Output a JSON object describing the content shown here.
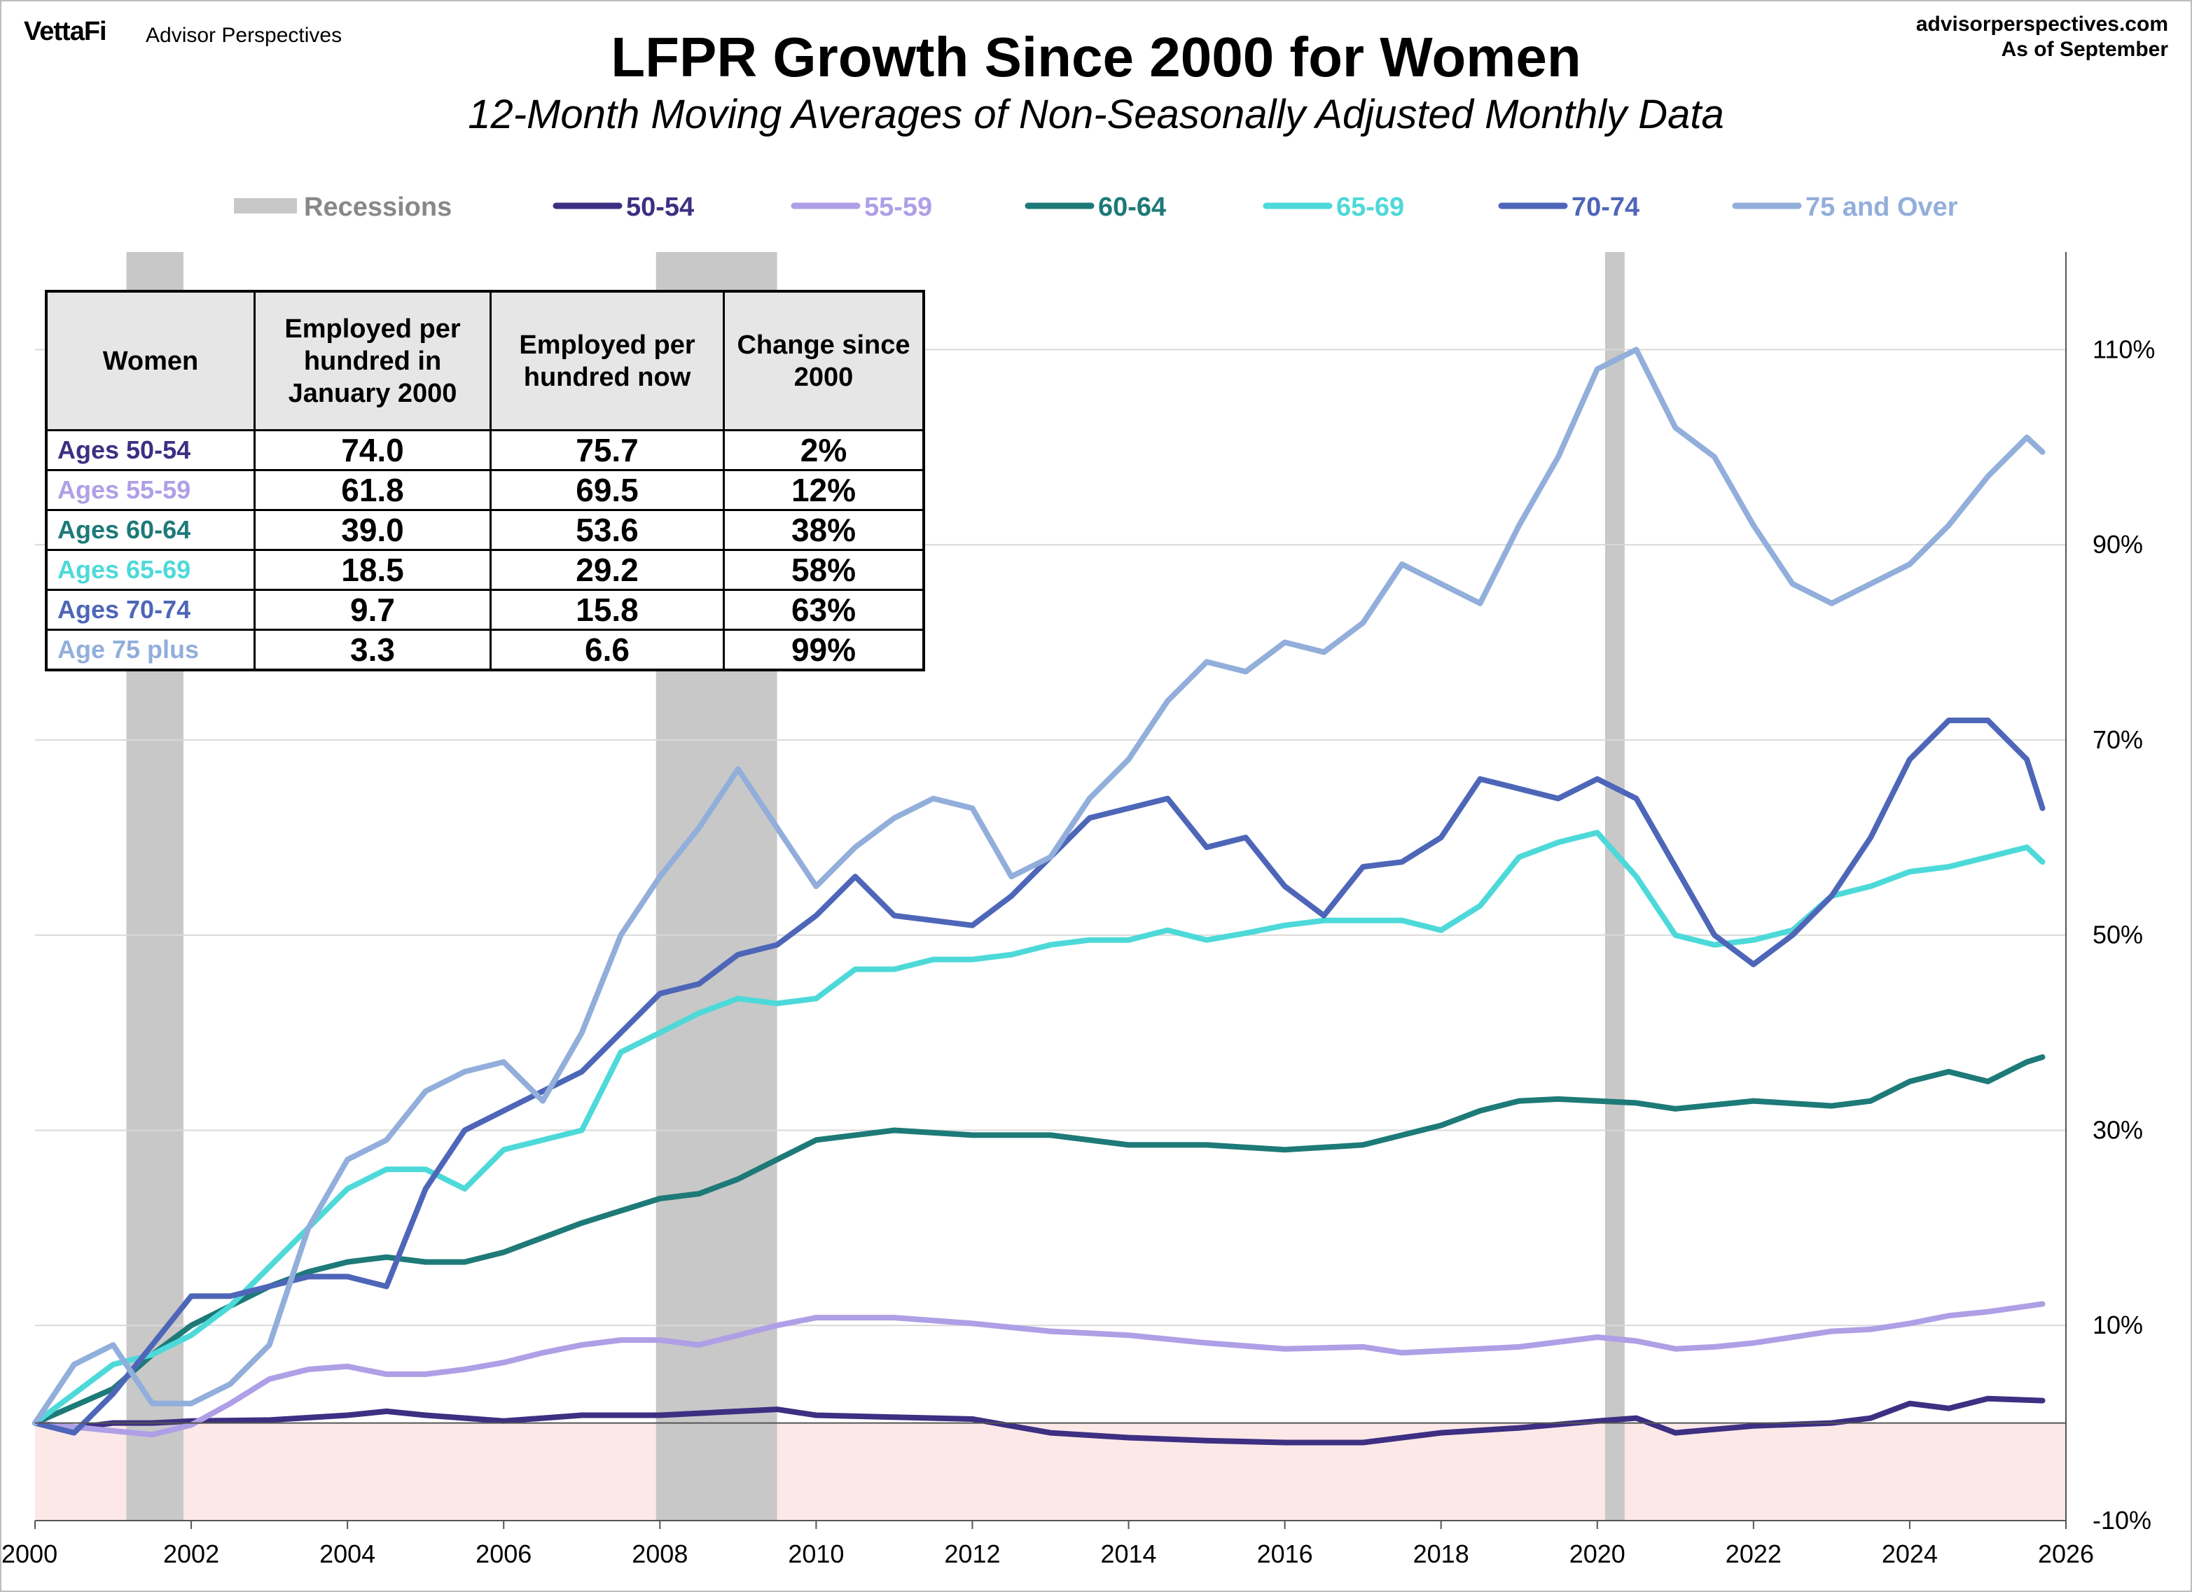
{
  "header": {
    "logo": "VettaFi",
    "brand": "Advisor Perspectives",
    "site": "advisorperspectives.com",
    "as_of": "As of September"
  },
  "chart_data": {
    "type": "line",
    "title": "LFPR Growth Since 2000 for Women",
    "subtitle": "12-Month Moving Averages of Non-Seasonally Adjusted Monthly Data",
    "xlim": [
      2000,
      2026
    ],
    "ylim": [
      -10,
      120
    ],
    "x_ticks": [
      2000,
      2002,
      2004,
      2006,
      2008,
      2010,
      2012,
      2014,
      2016,
      2018,
      2020,
      2022,
      2024,
      2026
    ],
    "y_ticks": [
      -10,
      10,
      30,
      50,
      70,
      90,
      110
    ],
    "y_tick_labels": [
      "-10%",
      "10%",
      "30%",
      "50%",
      "70%",
      "90%",
      "110%"
    ],
    "grid": true,
    "legend_position": "top",
    "recessions": {
      "name": "Recessions",
      "color": "#c8c8c8",
      "periods": [
        [
          2001.17,
          2001.9
        ],
        [
          2007.95,
          2009.5
        ],
        [
          2020.1,
          2020.35
        ]
      ]
    },
    "negative_region_color": "#fde8e8",
    "series": [
      {
        "name": "50-54",
        "color": "#3d2f82",
        "x": [
          2000,
          2000.5,
          2001,
          2001.5,
          2002,
          2003,
          2004,
          2004.5,
          2005,
          2006,
          2007,
          2008,
          2009,
          2009.5,
          2010,
          2011,
          2012,
          2013,
          2014,
          2015,
          2016,
          2017,
          2018,
          2019,
          2020,
          2020.5,
          2021,
          2022,
          2023,
          2023.5,
          2024,
          2024.5,
          2025,
          2025.7
        ],
        "y": [
          0,
          -0.5,
          0,
          0,
          0.2,
          0.3,
          0.8,
          1.2,
          0.8,
          0.2,
          0.8,
          0.8,
          1.2,
          1.4,
          0.8,
          0.6,
          0.4,
          -1,
          -1.5,
          -1.8,
          -2,
          -2,
          -1,
          -0.5,
          0.2,
          0.5,
          -1,
          -0.3,
          0,
          0.5,
          2,
          1.5,
          2.5,
          2.3
        ]
      },
      {
        "name": "55-59",
        "color": "#ae9fe6",
        "x": [
          2000,
          2001,
          2001.5,
          2002,
          2002.5,
          2003,
          2003.5,
          2004,
          2004.5,
          2005,
          2005.5,
          2006,
          2006.5,
          2007,
          2007.5,
          2008,
          2008.5,
          2009,
          2009.5,
          2010,
          2011,
          2012,
          2013,
          2013.5,
          2014,
          2015,
          2016,
          2017,
          2017.5,
          2018,
          2019,
          2020,
          2020.5,
          2021,
          2021.5,
          2022,
          2022.5,
          2023,
          2023.5,
          2024,
          2024.5,
          2025,
          2025.7
        ],
        "y": [
          0,
          -0.8,
          -1.2,
          -0.2,
          2,
          4.5,
          5.5,
          5.8,
          5,
          5,
          5.5,
          6.2,
          7.2,
          8,
          8.5,
          8.5,
          8,
          9,
          10,
          10.8,
          10.8,
          10.2,
          9.4,
          9.2,
          9,
          8.2,
          7.6,
          7.8,
          7.2,
          7.4,
          7.8,
          8.8,
          8.4,
          7.6,
          7.8,
          8.2,
          8.8,
          9.4,
          9.6,
          10.2,
          11,
          11.4,
          12.2
        ]
      },
      {
        "name": "60-64",
        "color": "#1d7a78",
        "x": [
          2000,
          2001,
          2001.5,
          2002,
          2002.5,
          2003,
          2003.5,
          2004,
          2004.5,
          2005,
          2005.5,
          2006,
          2007,
          2008,
          2008.5,
          2009,
          2009.5,
          2010,
          2011,
          2012,
          2013,
          2014,
          2015,
          2016,
          2017,
          2018,
          2018.5,
          2019,
          2019.5,
          2020,
          2020.5,
          2021,
          2022,
          2023,
          2023.5,
          2024,
          2024.5,
          2025,
          2025.5,
          2025.7
        ],
        "y": [
          0,
          3.5,
          7,
          10,
          12,
          14,
          15.5,
          16.5,
          17,
          16.5,
          16.5,
          17.5,
          20.5,
          23,
          23.5,
          25,
          27,
          29,
          30,
          29.5,
          29.5,
          28.5,
          28.5,
          28,
          28.5,
          30.5,
          32,
          33,
          33.2,
          33,
          32.8,
          32.2,
          33,
          32.5,
          33,
          35,
          36,
          35,
          37,
          37.5
        ]
      },
      {
        "name": "65-69",
        "color": "#4ed9d9",
        "x": [
          2000,
          2000.5,
          2001,
          2001.5,
          2002,
          2002.5,
          2003,
          2003.5,
          2004,
          2004.5,
          2005,
          2005.5,
          2006,
          2006.5,
          2007,
          2007.5,
          2008,
          2008.5,
          2009,
          2009.5,
          2010,
          2010.5,
          2011,
          2011.5,
          2012,
          2012.5,
          2013,
          2013.5,
          2014,
          2014.5,
          2015,
          2015.5,
          2016,
          2016.5,
          2017,
          2017.5,
          2018,
          2018.5,
          2019,
          2019.5,
          2020,
          2020.5,
          2021,
          2021.5,
          2022,
          2022.5,
          2023,
          2023.5,
          2024,
          2024.5,
          2025,
          2025.5,
          2025.7
        ],
        "y": [
          0,
          3,
          6,
          7,
          9,
          12,
          16,
          20,
          24,
          26,
          26,
          24,
          28,
          29,
          30,
          38,
          40,
          42,
          43.5,
          43,
          43.5,
          46.5,
          46.5,
          47.5,
          47.5,
          48,
          49,
          49.5,
          49.5,
          50.5,
          49.5,
          50.2,
          51,
          51.5,
          51.5,
          51.5,
          50.5,
          53,
          58,
          59.5,
          60.5,
          56,
          50,
          49,
          49.5,
          50.5,
          54,
          55,
          56.5,
          57,
          58,
          59,
          57.5
        ]
      },
      {
        "name": "70-74",
        "color": "#4e66b8",
        "x": [
          2000,
          2000.5,
          2001,
          2001.5,
          2002,
          2002.5,
          2003,
          2003.5,
          2004,
          2004.5,
          2005,
          2005.5,
          2006,
          2006.5,
          2007,
          2007.5,
          2008,
          2008.5,
          2009,
          2009.5,
          2010,
          2010.5,
          2011,
          2011.5,
          2012,
          2012.5,
          2013,
          2013.5,
          2014,
          2014.5,
          2015,
          2015.5,
          2016,
          2016.5,
          2017,
          2017.5,
          2018,
          2018.5,
          2019,
          2019.5,
          2020,
          2020.5,
          2021,
          2021.5,
          2022,
          2022.5,
          2023,
          2023.5,
          2024,
          2024.5,
          2025,
          2025.5,
          2025.7
        ],
        "y": [
          0,
          -1,
          3,
          8,
          13,
          13,
          14,
          15,
          15,
          14,
          24,
          30,
          32,
          34,
          36,
          40,
          44,
          45,
          48,
          49,
          52,
          56,
          52,
          51.5,
          51,
          54,
          58,
          62,
          63,
          64,
          59,
          60,
          55,
          52,
          57,
          57.5,
          60,
          66,
          65,
          64,
          66,
          64,
          57,
          50,
          47,
          50,
          54,
          60,
          68,
          72,
          72,
          68,
          63
        ]
      },
      {
        "name": "75 and Over",
        "color": "#92aedb",
        "x": [
          2000,
          2000.5,
          2001,
          2001.5,
          2002,
          2002.5,
          2003,
          2003.5,
          2004,
          2004.5,
          2005,
          2005.5,
          2006,
          2006.5,
          2007,
          2007.5,
          2008,
          2008.5,
          2009,
          2009.5,
          2010,
          2010.5,
          2011,
          2011.5,
          2012,
          2012.5,
          2013,
          2013.5,
          2014,
          2014.5,
          2015,
          2015.5,
          2016,
          2016.5,
          2017,
          2017.5,
          2018,
          2018.5,
          2019,
          2019.5,
          2020,
          2020.5,
          2021,
          2021.5,
          2022,
          2022.5,
          2023,
          2023.5,
          2024,
          2024.5,
          2025,
          2025.5,
          2025.7
        ],
        "y": [
          0,
          6,
          8,
          2,
          2,
          4,
          8,
          20,
          27,
          29,
          34,
          36,
          37,
          33,
          40,
          50,
          56,
          61,
          67,
          61,
          55,
          59,
          62,
          64,
          63,
          56,
          58,
          64,
          68,
          74,
          78,
          77,
          80,
          79,
          82,
          88,
          86,
          84,
          92,
          99,
          108,
          110,
          102,
          99,
          92,
          86,
          84,
          86,
          88,
          92,
          97,
          101,
          99.5
        ]
      }
    ]
  },
  "table": {
    "headers": [
      "Women",
      "Employed per hundred in January 2000",
      "Employed per hundred now",
      "Change since 2000"
    ],
    "rows": [
      {
        "label": "Ages 50-54",
        "color": "#3d2f82",
        "jan2000": "74.0",
        "now": "75.7",
        "change": "2%"
      },
      {
        "label": "Ages 55-59",
        "color": "#ae9fe6",
        "jan2000": "61.8",
        "now": "69.5",
        "change": "12%"
      },
      {
        "label": "Ages 60-64",
        "color": "#1d7a78",
        "jan2000": "39.0",
        "now": "53.6",
        "change": "38%"
      },
      {
        "label": "Ages 65-69",
        "color": "#4ed9d9",
        "jan2000": "18.5",
        "now": "29.2",
        "change": "58%"
      },
      {
        "label": "Ages 70-74",
        "color": "#4e66b8",
        "jan2000": "9.7",
        "now": "15.8",
        "change": "63%"
      },
      {
        "label": "Age 75 plus",
        "color": "#92aedb",
        "jan2000": "3.3",
        "now": "6.6",
        "change": "99%"
      }
    ]
  }
}
